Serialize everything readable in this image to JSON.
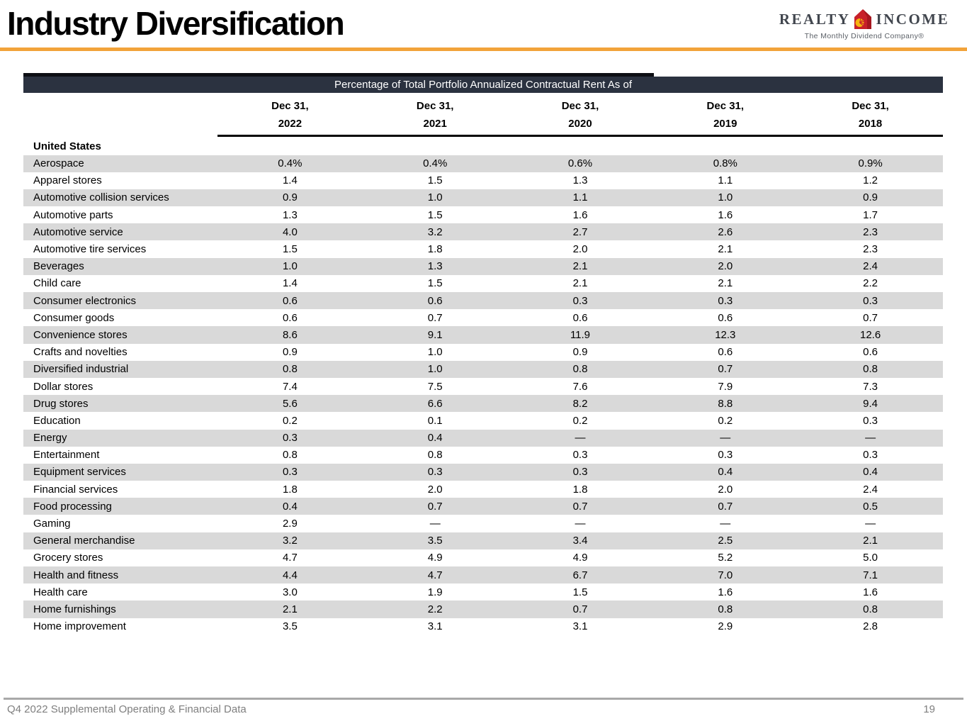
{
  "page": {
    "title": "Industry Diversification",
    "footer_left": "Q4 2022 Supplemental Operating & Financial Data",
    "page_number": "19"
  },
  "logo": {
    "word_left": "REALTY",
    "word_right": "INCOME",
    "tagline": "The Monthly Dividend Company®",
    "house_icon": "realty-income-house-icon"
  },
  "colors": {
    "accent_orange": "#F2A33A",
    "banner_dark": "#2B3240",
    "stripe_gray": "#D9D9D9",
    "logo_red": "#C8202A",
    "logo_sun_yellow": "#F6B40E",
    "footer_gray": "#7f7f7f"
  },
  "table": {
    "banner": "Percentage of Total Portfolio Annualized Contractual Rent As of",
    "columns": [
      {
        "line1": "Dec 31,",
        "line2": "2022"
      },
      {
        "line1": "Dec 31,",
        "line2": "2021"
      },
      {
        "line1": "Dec 31,",
        "line2": "2020"
      },
      {
        "line1": "Dec 31,",
        "line2": "2019"
      },
      {
        "line1": "Dec 31,",
        "line2": "2018"
      }
    ],
    "section": "United States",
    "rows": [
      {
        "label": "Aerospace",
        "values": [
          "0.4%",
          "0.4%",
          "0.6%",
          "0.8%",
          "0.9%"
        ]
      },
      {
        "label": "Apparel stores",
        "values": [
          "1.4",
          "1.5",
          "1.3",
          "1.1",
          "1.2"
        ]
      },
      {
        "label": "Automotive collision services",
        "values": [
          "0.9",
          "1.0",
          "1.1",
          "1.0",
          "0.9"
        ]
      },
      {
        "label": "Automotive parts",
        "values": [
          "1.3",
          "1.5",
          "1.6",
          "1.6",
          "1.7"
        ]
      },
      {
        "label": "Automotive service",
        "values": [
          "4.0",
          "3.2",
          "2.7",
          "2.6",
          "2.3"
        ]
      },
      {
        "label": "Automotive tire services",
        "values": [
          "1.5",
          "1.8",
          "2.0",
          "2.1",
          "2.3"
        ]
      },
      {
        "label": "Beverages",
        "values": [
          "1.0",
          "1.3",
          "2.1",
          "2.0",
          "2.4"
        ]
      },
      {
        "label": "Child care",
        "values": [
          "1.4",
          "1.5",
          "2.1",
          "2.1",
          "2.2"
        ]
      },
      {
        "label": "Consumer electronics",
        "values": [
          "0.6",
          "0.6",
          "0.3",
          "0.3",
          "0.3"
        ]
      },
      {
        "label": "Consumer goods",
        "values": [
          "0.6",
          "0.7",
          "0.6",
          "0.6",
          "0.7"
        ]
      },
      {
        "label": "Convenience stores",
        "values": [
          "8.6",
          "9.1",
          "11.9",
          "12.3",
          "12.6"
        ]
      },
      {
        "label": "Crafts and novelties",
        "values": [
          "0.9",
          "1.0",
          "0.9",
          "0.6",
          "0.6"
        ]
      },
      {
        "label": "Diversified industrial",
        "values": [
          "0.8",
          "1.0",
          "0.8",
          "0.7",
          "0.8"
        ]
      },
      {
        "label": "Dollar stores",
        "values": [
          "7.4",
          "7.5",
          "7.6",
          "7.9",
          "7.3"
        ]
      },
      {
        "label": "Drug stores",
        "values": [
          "5.6",
          "6.6",
          "8.2",
          "8.8",
          "9.4"
        ]
      },
      {
        "label": "Education",
        "values": [
          "0.2",
          "0.1",
          "0.2",
          "0.2",
          "0.3"
        ]
      },
      {
        "label": "Energy",
        "values": [
          "0.3",
          "0.4",
          "—",
          "—",
          "—"
        ]
      },
      {
        "label": "Entertainment",
        "values": [
          "0.8",
          "0.8",
          "0.3",
          "0.3",
          "0.3"
        ]
      },
      {
        "label": "Equipment services",
        "values": [
          "0.3",
          "0.3",
          "0.3",
          "0.4",
          "0.4"
        ]
      },
      {
        "label": "Financial services",
        "values": [
          "1.8",
          "2.0",
          "1.8",
          "2.0",
          "2.4"
        ]
      },
      {
        "label": "Food processing",
        "values": [
          "0.4",
          "0.7",
          "0.7",
          "0.7",
          "0.5"
        ]
      },
      {
        "label": "Gaming",
        "values": [
          "2.9",
          "—",
          "—",
          "—",
          "—"
        ]
      },
      {
        "label": "General merchandise",
        "values": [
          "3.2",
          "3.5",
          "3.4",
          "2.5",
          "2.1"
        ]
      },
      {
        "label": "Grocery stores",
        "values": [
          "4.7",
          "4.9",
          "4.9",
          "5.2",
          "5.0"
        ]
      },
      {
        "label": "Health and fitness",
        "values": [
          "4.4",
          "4.7",
          "6.7",
          "7.0",
          "7.1"
        ]
      },
      {
        "label": "Health care",
        "values": [
          "3.0",
          "1.9",
          "1.5",
          "1.6",
          "1.6"
        ]
      },
      {
        "label": "Home furnishings",
        "values": [
          "2.1",
          "2.2",
          "0.7",
          "0.8",
          "0.8"
        ]
      },
      {
        "label": "Home improvement",
        "values": [
          "3.5",
          "3.1",
          "3.1",
          "2.9",
          "2.8"
        ]
      }
    ]
  }
}
